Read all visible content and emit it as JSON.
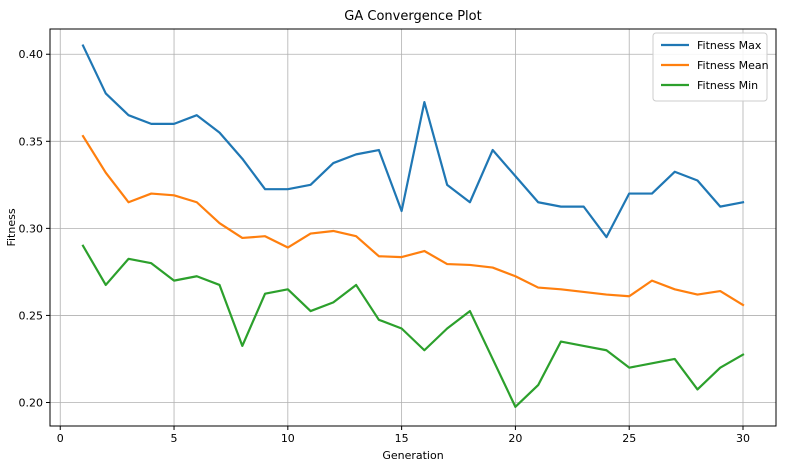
{
  "chart_data": {
    "type": "line",
    "title": "GA Convergence Plot",
    "xlabel": "Generation",
    "ylabel": "Fitness",
    "xlim": [
      -0.45,
      31.45
    ],
    "ylim": [
      0.1865,
      0.4145
    ],
    "xticks": [
      0,
      5,
      10,
      15,
      20,
      25,
      30
    ],
    "xtick_labels": [
      "0",
      "5",
      "10",
      "15",
      "20",
      "25",
      "30"
    ],
    "yticks": [
      0.2,
      0.25,
      0.3,
      0.35,
      0.4
    ],
    "ytick_labels": [
      "0.20",
      "0.25",
      "0.30",
      "0.35",
      "0.40"
    ],
    "grid": true,
    "legend_position": "top-right",
    "x": [
      1,
      2,
      3,
      4,
      5,
      6,
      7,
      8,
      9,
      10,
      11,
      12,
      13,
      14,
      15,
      16,
      17,
      18,
      19,
      20,
      21,
      22,
      23,
      24,
      25,
      26,
      27,
      28,
      29,
      30
    ],
    "series": [
      {
        "name": "Fitness Max",
        "color": "#1f77b4",
        "values": [
          0.405,
          0.3775,
          0.365,
          0.36,
          0.36,
          0.365,
          0.355,
          0.34,
          0.3225,
          0.3225,
          0.325,
          0.3375,
          0.3425,
          0.345,
          0.31,
          0.3725,
          0.325,
          0.315,
          0.345,
          0.33,
          0.315,
          0.3125,
          0.3125,
          0.295,
          0.32,
          0.32,
          0.3325,
          0.3275,
          0.3125,
          0.315
        ]
      },
      {
        "name": "Fitness Mean",
        "color": "#ff7f0e",
        "values": [
          0.353,
          0.332,
          0.315,
          0.32,
          0.319,
          0.315,
          0.303,
          0.2945,
          0.2955,
          0.289,
          0.297,
          0.2985,
          0.2955,
          0.284,
          0.2835,
          0.287,
          0.2795,
          0.279,
          0.2775,
          0.2725,
          0.266,
          0.265,
          0.2635,
          0.262,
          0.261,
          0.27,
          0.265,
          0.262,
          0.264,
          0.256
        ]
      },
      {
        "name": "Fitness Min",
        "color": "#2ca02c",
        "values": [
          0.29,
          0.2675,
          0.2825,
          0.28,
          0.27,
          0.2725,
          0.2675,
          0.2325,
          0.2625,
          0.265,
          0.2525,
          0.2575,
          0.2675,
          0.2475,
          0.2425,
          0.23,
          0.2425,
          0.2525,
          0.225,
          0.1975,
          0.21,
          0.235,
          0.2325,
          0.23,
          0.22,
          0.2225,
          0.225,
          0.2075,
          0.22,
          0.2275
        ]
      }
    ]
  }
}
